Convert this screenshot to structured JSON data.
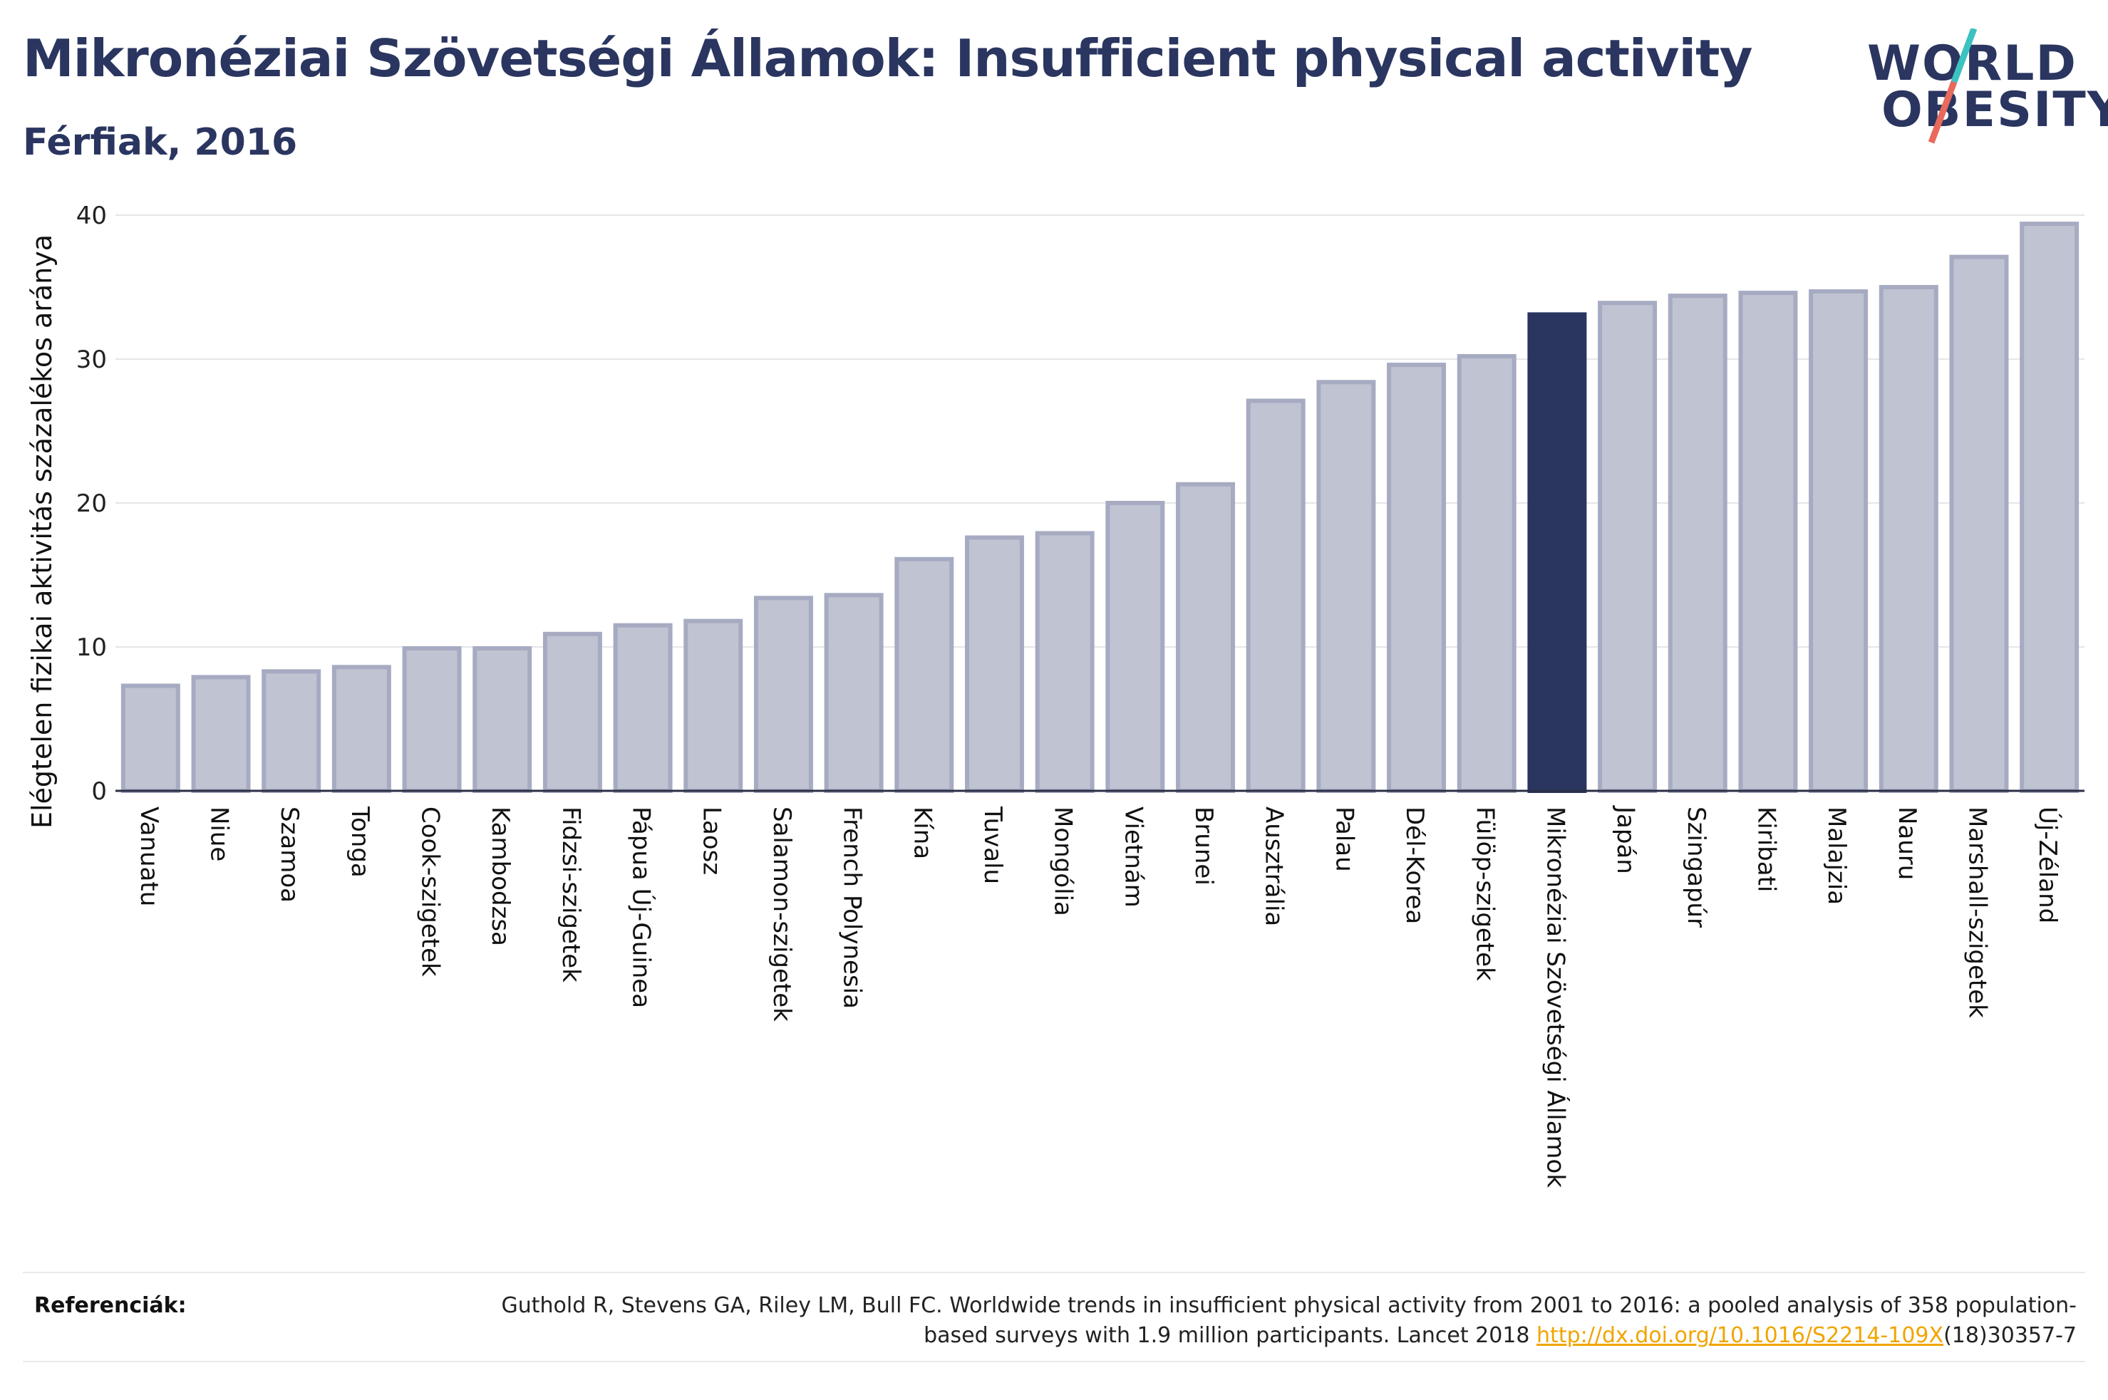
{
  "title": "Mikronéziai Szövetségi Államok: Insufficient physical activity",
  "subtitle": "Férfiak, 2016",
  "logo": {
    "line1": "WORLD",
    "line2": "OBESITY"
  },
  "references": {
    "label": "Referenciák:",
    "text_before": "Guthold R, Stevens GA, Riley LM, Bull FC. Worldwide trends in insufficient physical activity from 2001 to 2016: a pooled analysis of 358 population-based surveys with 1.9 million participants. Lancet 2018 ",
    "link": "http://dx.doi.org/10.1016/S2214-109X",
    "text_after": "(18)30357-7"
  },
  "colors": {
    "bar_default": "#bfc3d2",
    "bar_stroke": "#a6abc2",
    "bar_highlight": "#2a3560",
    "title": "#2a3560",
    "link": "#f0a500",
    "logo_teal": "#3cc2c0",
    "logo_coral": "#e86a5c"
  },
  "chart_data": {
    "type": "bar",
    "ylabel": "Elégtelen fizikai aktivitás százalékos aránya",
    "xlabel": "",
    "ylim": [
      0,
      40
    ],
    "yticks": [
      0,
      10,
      20,
      30,
      40
    ],
    "grid": true,
    "highlight": "Mikronéziai Szövetségi Államok",
    "categories": [
      "Vanuatu",
      "Niue",
      "Szamoa",
      "Tonga",
      "Cook-szigetek",
      "Kambodzsa",
      "Fidzsi-szigetek",
      "Pápua Új-Guinea",
      "Laosz",
      "Salamon-szigetek",
      "French Polynesia",
      "Kína",
      "Tuvalu",
      "Mongólia",
      "Vietnám",
      "Brunei",
      "Ausztrália",
      "Palau",
      "Dél-Korea",
      "Fülöp-szigetek",
      "Mikronéziai Szövetségi Államok",
      "Japán",
      "Szingapúr",
      "Kiribati",
      "Malajzia",
      "Nauru",
      "Marshall-szigetek",
      "Új-Zéland"
    ],
    "values": [
      7.3,
      7.9,
      8.3,
      8.6,
      9.9,
      9.9,
      10.9,
      11.5,
      11.8,
      13.4,
      13.6,
      16.1,
      17.6,
      17.9,
      20.0,
      21.3,
      27.1,
      28.4,
      29.6,
      30.2,
      33.1,
      33.9,
      34.4,
      34.6,
      34.7,
      35.0,
      37.1,
      39.4
    ]
  }
}
